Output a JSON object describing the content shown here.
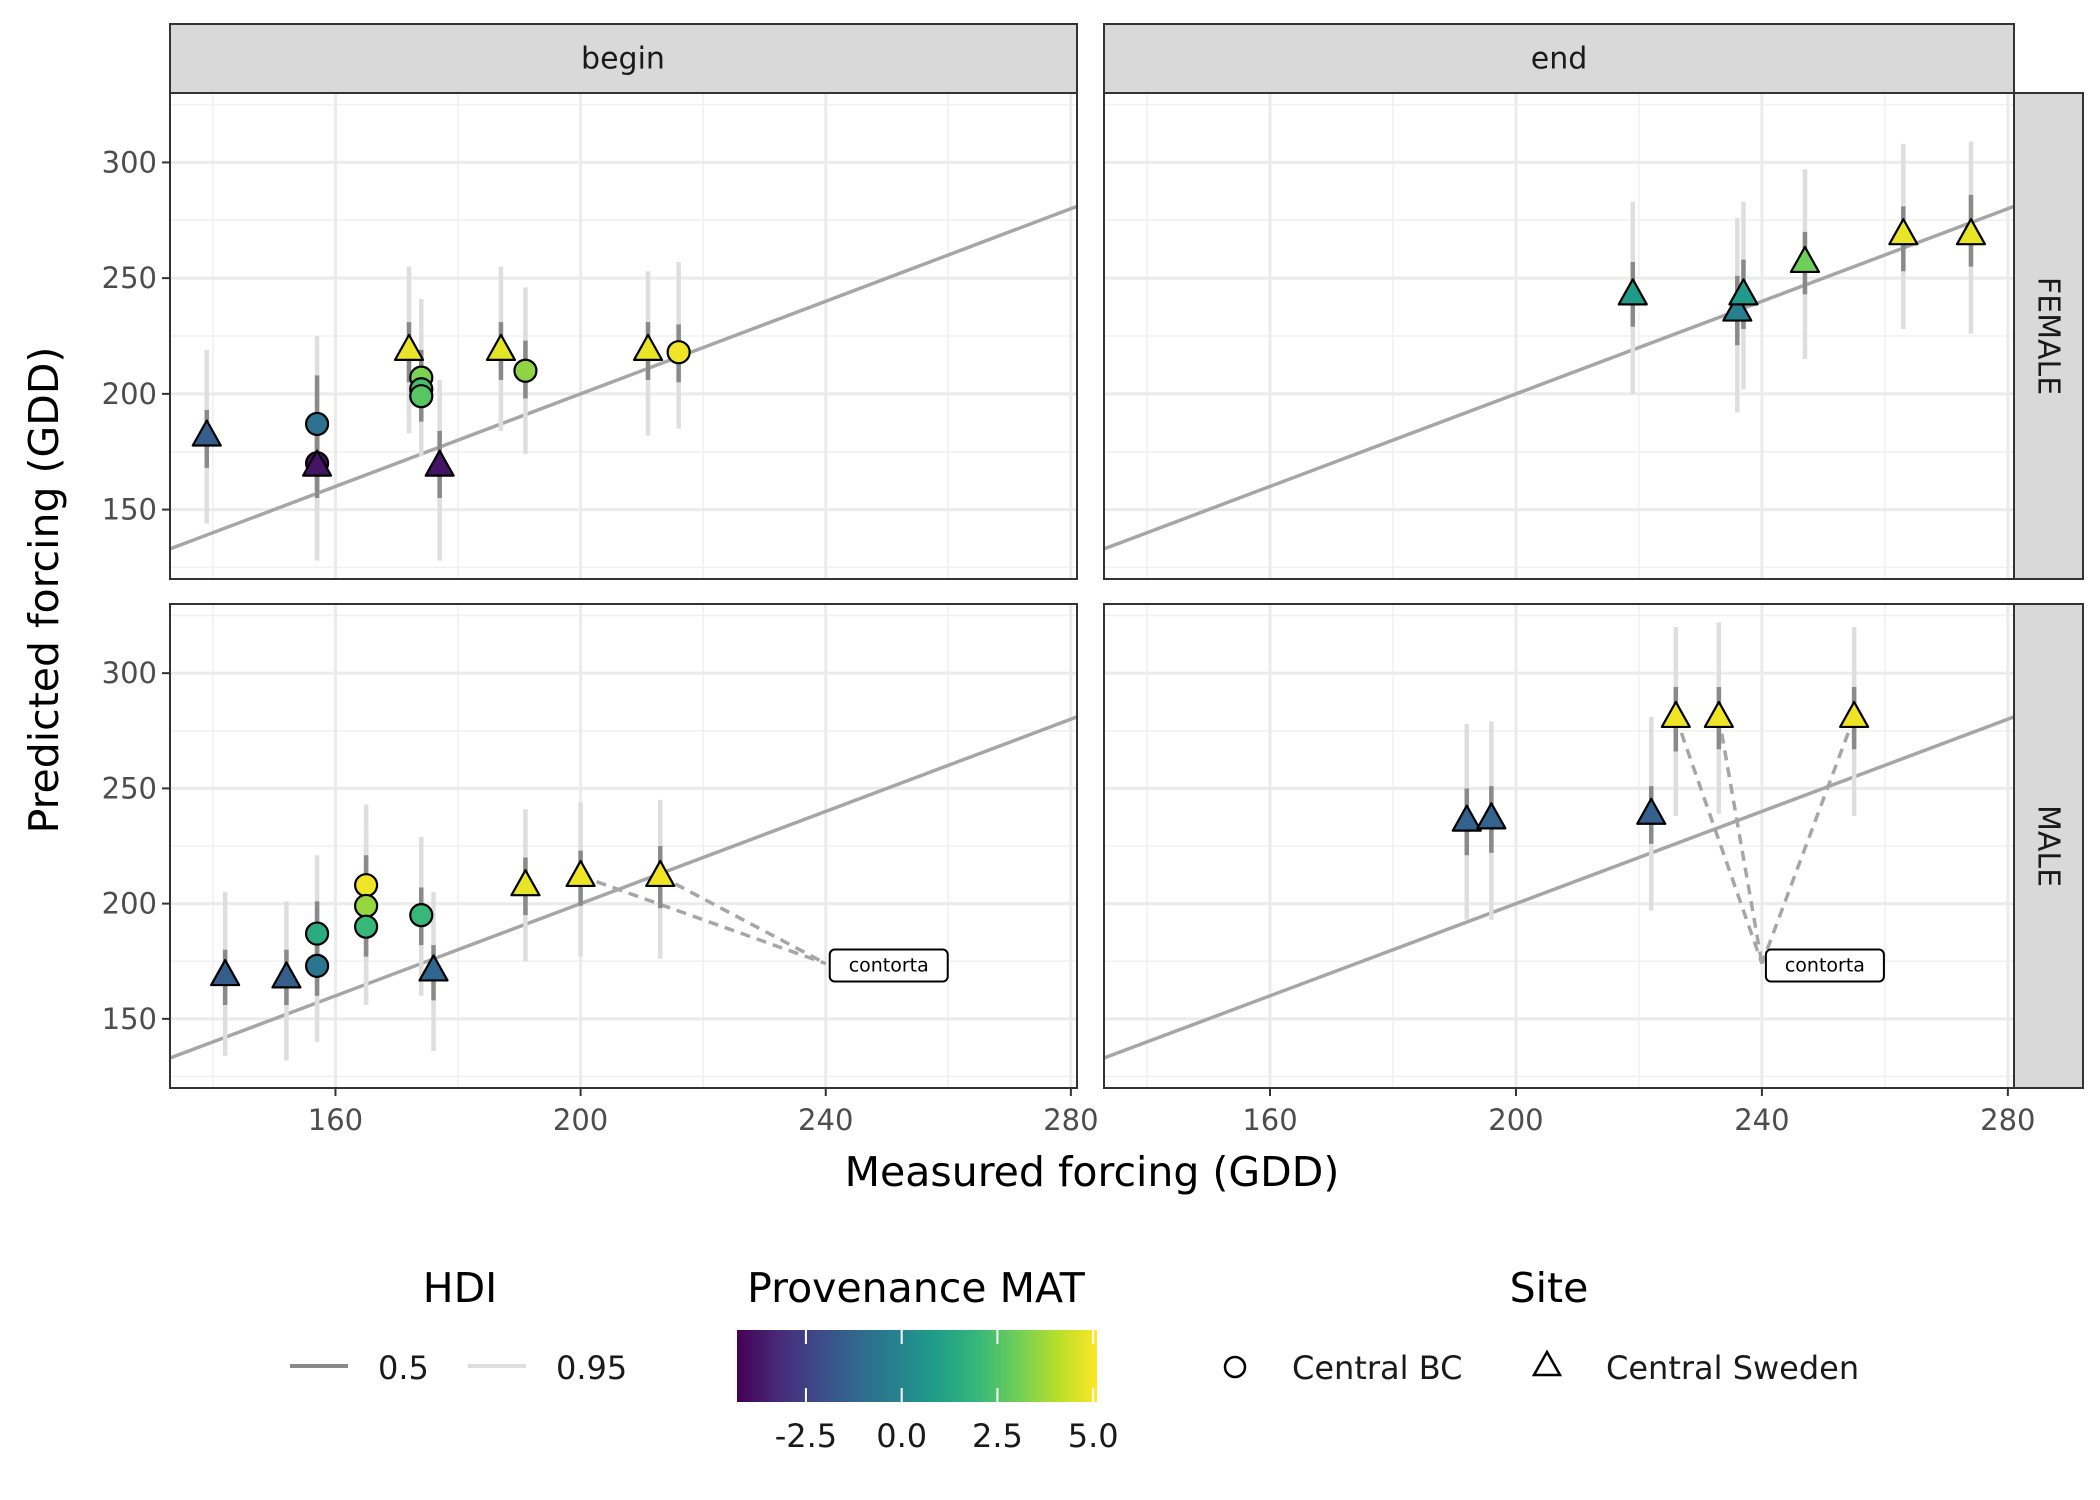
{
  "chart_data": {
    "type": "scatter",
    "xlabel": "Measured forcing (GDD)",
    "ylabel": "Predicted forcing (GDD)",
    "xlim": [
      133,
      281
    ],
    "ylim": [
      120,
      330
    ],
    "x_ticks": [
      160,
      200,
      240,
      280
    ],
    "y_ticks": [
      150,
      200,
      250,
      300
    ],
    "grid": true,
    "reference_line": "y = x",
    "column_facets": [
      "begin",
      "end"
    ],
    "row_facets": [
      "FEMALE",
      "MALE"
    ],
    "panels": [
      {
        "col": "begin",
        "row": "FEMALE",
        "points": [
          {
            "x": 139,
            "y": 182,
            "site": "Central Sweden",
            "mat": -1.5,
            "hdi50": [
              168,
              193
            ],
            "hdi95": [
              144,
              219
            ]
          },
          {
            "x": 157,
            "y": 187,
            "site": "Central BC",
            "mat": -0.8,
            "hdi50": [
              172,
              208
            ],
            "hdi95": [
              150,
              225
            ]
          },
          {
            "x": 157,
            "y": 170,
            "site": "Central BC",
            "mat": -4.0,
            "hdi50": [
              158,
              182
            ],
            "hdi95": [
              128,
              203
            ]
          },
          {
            "x": 157,
            "y": 169,
            "site": "Central Sweden",
            "mat": -3.8,
            "hdi50": [
              155,
              183
            ],
            "hdi95": [
              130,
              203
            ]
          },
          {
            "x": 172,
            "y": 219,
            "site": "Central Sweden",
            "mat": 4.8,
            "hdi50": [
              205,
              231
            ],
            "hdi95": [
              183,
              255
            ]
          },
          {
            "x": 174,
            "y": 207,
            "site": "Central BC",
            "mat": 3.2,
            "hdi50": [
              193,
              219
            ],
            "hdi95": [
              178,
              241
            ]
          },
          {
            "x": 174,
            "y": 202,
            "site": "Central BC",
            "mat": 2.3,
            "hdi50": [
              190,
              215
            ],
            "hdi95": [
              175,
              236
            ]
          },
          {
            "x": 174,
            "y": 199,
            "site": "Central BC",
            "mat": 2.6,
            "hdi50": [
              188,
              212
            ],
            "hdi95": [
              173,
              231
            ]
          },
          {
            "x": 177,
            "y": 169,
            "site": "Central Sweden",
            "mat": -3.8,
            "hdi50": [
              155,
              184
            ],
            "hdi95": [
              128,
              206
            ]
          },
          {
            "x": 187,
            "y": 219,
            "site": "Central Sweden",
            "mat": 4.7,
            "hdi50": [
              206,
              231
            ],
            "hdi95": [
              184,
              255
            ]
          },
          {
            "x": 191,
            "y": 210,
            "site": "Central BC",
            "mat": 3.5,
            "hdi50": [
              198,
              223
            ],
            "hdi95": [
              174,
              246
            ]
          },
          {
            "x": 211,
            "y": 219,
            "site": "Central Sweden",
            "mat": 4.8,
            "hdi50": [
              206,
              231
            ],
            "hdi95": [
              182,
              253
            ]
          },
          {
            "x": 216,
            "y": 218,
            "site": "Central BC",
            "mat": 4.9,
            "hdi50": [
              205,
              230
            ],
            "hdi95": [
              185,
              257
            ]
          }
        ]
      },
      {
        "col": "end",
        "row": "FEMALE",
        "points": [
          {
            "x": 219,
            "y": 243,
            "site": "Central Sweden",
            "mat": 0.8,
            "hdi50": [
              229,
              257
            ],
            "hdi95": [
              200,
              283
            ]
          },
          {
            "x": 236,
            "y": 236,
            "site": "Central Sweden",
            "mat": -0.2,
            "hdi50": [
              221,
              251
            ],
            "hdi95": [
              192,
              276
            ]
          },
          {
            "x": 237,
            "y": 243,
            "site": "Central Sweden",
            "mat": 0.8,
            "hdi50": [
              228,
              258
            ],
            "hdi95": [
              202,
              283
            ]
          },
          {
            "x": 247,
            "y": 257,
            "site": "Central Sweden",
            "mat": 3.0,
            "hdi50": [
              243,
              270
            ],
            "hdi95": [
              215,
              297
            ]
          },
          {
            "x": 263,
            "y": 269,
            "site": "Central Sweden",
            "mat": 4.8,
            "hdi50": [
              253,
              281
            ],
            "hdi95": [
              228,
              308
            ]
          },
          {
            "x": 274,
            "y": 269,
            "site": "Central Sweden",
            "mat": 4.8,
            "hdi50": [
              255,
              286
            ],
            "hdi95": [
              226,
              309
            ]
          }
        ]
      },
      {
        "col": "begin",
        "row": "MALE",
        "points": [
          {
            "x": 142,
            "y": 169,
            "site": "Central Sweden",
            "mat": -1.5,
            "hdi50": [
              156,
              180
            ],
            "hdi95": [
              134,
              205
            ]
          },
          {
            "x": 152,
            "y": 168,
            "site": "Central Sweden",
            "mat": -1.5,
            "hdi50": [
              156,
              180
            ],
            "hdi95": [
              132,
              201
            ]
          },
          {
            "x": 157,
            "y": 187,
            "site": "Central BC",
            "mat": 1.5,
            "hdi50": [
              173,
              201
            ],
            "hdi95": [
              150,
              221
            ]
          },
          {
            "x": 157,
            "y": 173,
            "site": "Central BC",
            "mat": -0.6,
            "hdi50": [
              160,
              186
            ],
            "hdi95": [
              140,
              201
            ]
          },
          {
            "x": 165,
            "y": 208,
            "site": "Central BC",
            "mat": 4.9,
            "hdi50": [
              193,
              221
            ],
            "hdi95": [
              175,
              243
            ]
          },
          {
            "x": 165,
            "y": 199,
            "site": "Central BC",
            "mat": 3.6,
            "hdi50": [
              186,
              212
            ],
            "hdi95": [
              165,
              233
            ]
          },
          {
            "x": 165,
            "y": 190,
            "site": "Central BC",
            "mat": 2.0,
            "hdi50": [
              177,
              204
            ],
            "hdi95": [
              156,
              225
            ]
          },
          {
            "x": 174,
            "y": 195,
            "site": "Central BC",
            "mat": 2.0,
            "hdi50": [
              182,
              207
            ],
            "hdi95": [
              160,
              229
            ]
          },
          {
            "x": 176,
            "y": 171,
            "site": "Central Sweden",
            "mat": -1.2,
            "hdi50": [
              158,
              182
            ],
            "hdi95": [
              136,
              205
            ]
          },
          {
            "x": 191,
            "y": 208,
            "site": "Central Sweden",
            "mat": 4.8,
            "hdi50": [
              195,
              220
            ],
            "hdi95": [
              175,
              241
            ]
          },
          {
            "x": 200,
            "y": 212,
            "site": "Central Sweden",
            "mat": 4.9,
            "hdi50": [
              199,
              223
            ],
            "hdi95": [
              177,
              244
            ]
          },
          {
            "x": 213,
            "y": 212,
            "site": "Central Sweden",
            "mat": 4.9,
            "hdi50": [
              198,
              225
            ],
            "hdi95": [
              176,
              245
            ]
          }
        ],
        "annotations": [
          {
            "text": "contorta",
            "x": 240,
            "y": 174,
            "targets": [
              [
                200,
                212
              ],
              [
                213,
                212
              ]
            ]
          }
        ]
      },
      {
        "col": "end",
        "row": "MALE",
        "points": [
          {
            "x": 192,
            "y": 236,
            "site": "Central Sweden",
            "mat": -1.4,
            "hdi50": [
              221,
              250
            ],
            "hdi95": [
              193,
              278
            ]
          },
          {
            "x": 196,
            "y": 237,
            "site": "Central Sweden",
            "mat": -1.3,
            "hdi50": [
              222,
              251
            ],
            "hdi95": [
              193,
              279
            ]
          },
          {
            "x": 222,
            "y": 239,
            "site": "Central Sweden",
            "mat": -1.4,
            "hdi50": [
              226,
              251
            ],
            "hdi95": [
              197,
              281
            ]
          },
          {
            "x": 226,
            "y": 281,
            "site": "Central Sweden",
            "mat": 4.9,
            "hdi50": [
              266,
              294
            ],
            "hdi95": [
              238,
              320
            ]
          },
          {
            "x": 233,
            "y": 281,
            "site": "Central Sweden",
            "mat": 4.9,
            "hdi50": [
              267,
              294
            ],
            "hdi95": [
              239,
              322
            ]
          },
          {
            "x": 255,
            "y": 281,
            "site": "Central Sweden",
            "mat": 4.9,
            "hdi50": [
              267,
              294
            ],
            "hdi95": [
              238,
              320
            ]
          }
        ],
        "annotations": [
          {
            "text": "contorta",
            "x": 240,
            "y": 174,
            "targets": [
              [
                226,
                281
              ],
              [
                233,
                281
              ],
              [
                255,
                281
              ]
            ]
          }
        ]
      }
    ],
    "legend": {
      "placement": "bottom",
      "hdi": {
        "title": "HDI",
        "items": [
          {
            "label": "0.5",
            "color": "#8a8a8a"
          },
          {
            "label": "0.95",
            "color": "#dedede"
          }
        ]
      },
      "mat": {
        "title": "Provenance MAT",
        "ticks": [
          "-2.5",
          "0.0",
          "2.5",
          "5.0"
        ],
        "tick_values": [
          -2.5,
          0,
          2.5,
          5
        ],
        "range": [
          -4.3,
          5.1
        ]
      },
      "site": {
        "title": "Site",
        "items": [
          {
            "label": "Central BC",
            "shape": "circle"
          },
          {
            "label": "Central Sweden",
            "shape": "triangle"
          }
        ]
      }
    },
    "colors": {
      "viridis": [
        "#440154",
        "#482878",
        "#3e4989",
        "#31688e",
        "#26828e",
        "#1f9e89",
        "#35b779",
        "#6ece58",
        "#b5de2b",
        "#fde725"
      ],
      "reference_line": "#a6a6a6",
      "strip_fill": "#d9d9d9"
    }
  }
}
